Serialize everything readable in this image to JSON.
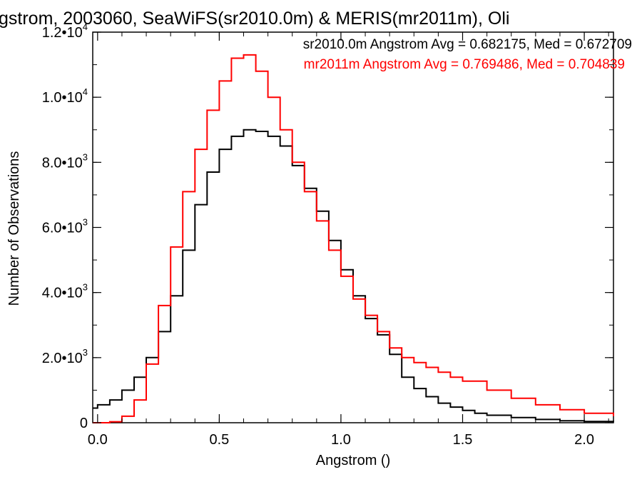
{
  "chart_data": {
    "type": "line",
    "step": true,
    "title": "gstrom, 2003060, SeaWiFS(sr2010.0m) & MERIS(mr2011m), Oli",
    "xlabel": "Angstrom ()",
    "ylabel": "Number of Observations",
    "xlim": [
      -0.02,
      2.12
    ],
    "ylim": [
      0,
      12000
    ],
    "x_ticks": [
      {
        "value": 0.0,
        "label": "0.0"
      },
      {
        "value": 0.5,
        "label": "0.5"
      },
      {
        "value": 1.0,
        "label": "1.0"
      },
      {
        "value": 1.5,
        "label": "1.5"
      },
      {
        "value": 2.0,
        "label": "2.0"
      }
    ],
    "y_ticks": [
      {
        "value": 0,
        "mant": "0",
        "exp": ""
      },
      {
        "value": 2000,
        "mant": "2.0•10",
        "exp": "3"
      },
      {
        "value": 4000,
        "mant": "4.0•10",
        "exp": "3"
      },
      {
        "value": 6000,
        "mant": "6.0•10",
        "exp": "3"
      },
      {
        "value": 8000,
        "mant": "8.0•10",
        "exp": "3"
      },
      {
        "value": 10000,
        "mant": "1.0•10",
        "exp": "4"
      },
      {
        "value": 12000,
        "mant": "1.2•10",
        "exp": "4"
      }
    ],
    "grid": false,
    "legend_placement": "top-right",
    "series": [
      {
        "name": "sr2010.0m",
        "legend_text": "sr2010.0m Angstrom Avg = 0.682175, Med = 0.672709",
        "color": "#000000",
        "x": [
          -0.02,
          0.0,
          0.05,
          0.1,
          0.15,
          0.2,
          0.25,
          0.3,
          0.35,
          0.4,
          0.45,
          0.5,
          0.55,
          0.6,
          0.65,
          0.7,
          0.75,
          0.8,
          0.85,
          0.9,
          0.95,
          1.0,
          1.05,
          1.1,
          1.15,
          1.2,
          1.25,
          1.3,
          1.35,
          1.4,
          1.45,
          1.5,
          1.55,
          1.6,
          1.7,
          1.8,
          1.9,
          2.0,
          2.12
        ],
        "values": [
          450,
          550,
          700,
          1000,
          1400,
          2000,
          2800,
          3900,
          5300,
          6700,
          7700,
          8400,
          8800,
          9000,
          8950,
          8800,
          8500,
          7900,
          7200,
          6500,
          5600,
          4700,
          3900,
          3200,
          2700,
          2100,
          1400,
          1050,
          800,
          600,
          480,
          380,
          290,
          230,
          160,
          100,
          60,
          40,
          30
        ]
      },
      {
        "name": "mr2011m",
        "legend_text": "mr2011m Angstrom Avg = 0.769486, Med = 0.704839",
        "color": "#ff0000",
        "x": [
          -0.02,
          0.05,
          0.1,
          0.15,
          0.2,
          0.25,
          0.3,
          0.35,
          0.4,
          0.45,
          0.5,
          0.55,
          0.6,
          0.65,
          0.7,
          0.75,
          0.8,
          0.85,
          0.9,
          0.95,
          1.0,
          1.05,
          1.1,
          1.15,
          1.2,
          1.25,
          1.3,
          1.35,
          1.4,
          1.45,
          1.5,
          1.6,
          1.7,
          1.8,
          1.9,
          2.0,
          2.12
        ],
        "values": [
          0,
          30,
          200,
          700,
          1800,
          3600,
          5400,
          7100,
          8400,
          9600,
          10500,
          11200,
          11300,
          10800,
          10000,
          9000,
          8000,
          7100,
          6200,
          5300,
          4500,
          3800,
          3300,
          2800,
          2300,
          2000,
          1850,
          1700,
          1550,
          1400,
          1280,
          1000,
          750,
          550,
          400,
          290,
          200
        ]
      }
    ]
  }
}
